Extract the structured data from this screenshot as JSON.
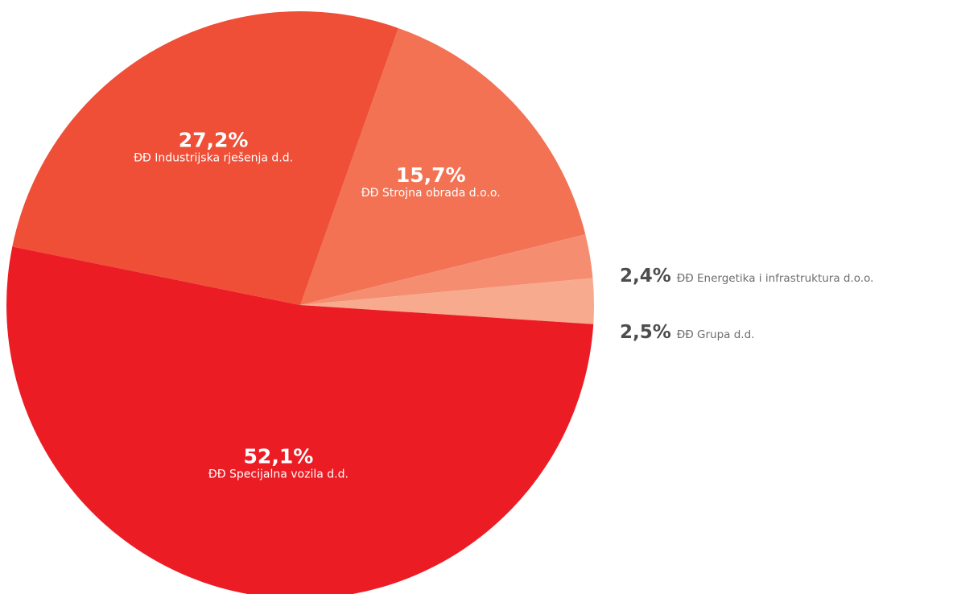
{
  "chart_data": {
    "type": "pie",
    "slices": [
      {
        "label": "ĐĐ Strojna obrada d.o.o.",
        "value": 15.7,
        "value_label": "15,7%",
        "color": "#f27253",
        "label_position": "inside"
      },
      {
        "label": "ĐĐ Energetika i infrastruktura d.o.o.",
        "value": 2.4,
        "value_label": "2,4%",
        "color": "#f58d70",
        "label_position": "outside"
      },
      {
        "label": "ĐĐ Grupa d.d.",
        "value": 2.5,
        "value_label": "2,5%",
        "color": "#f8aa8e",
        "label_position": "outside"
      },
      {
        "label": "ĐĐ Specijalna vozila d.d.",
        "value": 52.1,
        "value_label": "52,1%",
        "color": "#ec1c24",
        "label_position": "inside"
      },
      {
        "label": "ĐĐ Industrijska rješenja d.d.",
        "value": 27.2,
        "value_label": "27,2%",
        "color": "#ef4e37",
        "label_position": "inside"
      }
    ],
    "legend": "none",
    "title": ""
  }
}
